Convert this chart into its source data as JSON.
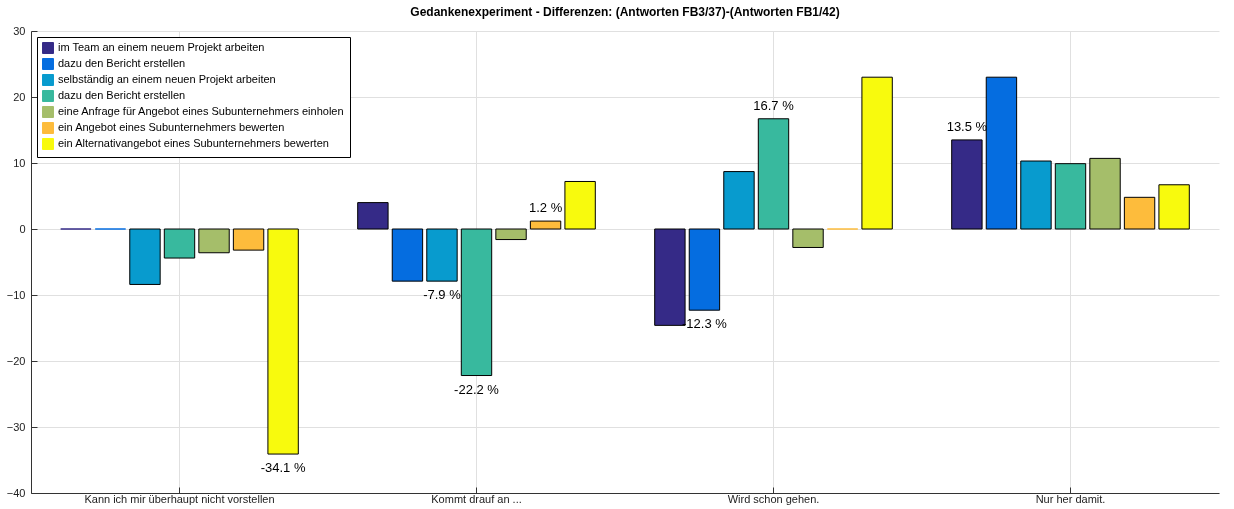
{
  "chart_data": {
    "type": "bar",
    "title": "Gedankenexperiment - Differenzen:  (Antworten FB3/37)-(Antworten FB1/42)",
    "categories": [
      "Kann ich mir überhaupt nicht vorstellen",
      "Kommt drauf an ...",
      "Wird schon gehen.",
      "Nur her damit."
    ],
    "series": [
      {
        "name": "im Team an einem neuem Projekt arbeiten",
        "color": "#352a87",
        "values": [
          0,
          4.0,
          -14.6,
          13.5
        ],
        "value_labels": [
          null,
          null,
          null,
          "13.5 %"
        ]
      },
      {
        "name": "dazu den Bericht erstellen",
        "color": "#056de0",
        "values": [
          0,
          -7.9,
          -12.3,
          23.0
        ],
        "value_labels": [
          null,
          null,
          "-12.3 %",
          null
        ]
      },
      {
        "name": "selbständig an einem neuen Projekt arbeiten",
        "color": "#089bce",
        "values": [
          -8.4,
          -7.9,
          8.7,
          10.3
        ],
        "value_labels": [
          null,
          "-7.9 %",
          null,
          null
        ]
      },
      {
        "name": "dazu den Bericht erstellen",
        "color": "#38b99e",
        "values": [
          -4.4,
          -22.2,
          16.7,
          9.9
        ],
        "value_labels": [
          null,
          "-22.2 %",
          "16.7 %",
          null
        ]
      },
      {
        "name": "eine Anfrage für Angebot eines Subunternehmers einholen",
        "color": "#a5be6a",
        "values": [
          -3.6,
          -1.6,
          -2.8,
          10.7
        ],
        "value_labels": [
          null,
          null,
          null,
          null
        ]
      },
      {
        "name": "ein Angebot eines Subunternehmers bewerten",
        "color": "#fdbc3c",
        "values": [
          -3.2,
          1.2,
          0,
          4.8
        ],
        "value_labels": [
          null,
          "1.2 %",
          null,
          null
        ]
      },
      {
        "name": "ein Alternativangebot eines Subunternehmers bewerten",
        "color": "#f8fa0d",
        "values": [
          -34.1,
          7.2,
          23.0,
          6.7
        ],
        "value_labels": [
          "-34.1 %",
          null,
          null,
          null
        ]
      }
    ],
    "ylim": [
      -40,
      30
    ],
    "yticks": [
      -40,
      -30,
      -20,
      -10,
      0,
      10,
      20,
      30
    ],
    "grid": true,
    "legend": "top left"
  }
}
